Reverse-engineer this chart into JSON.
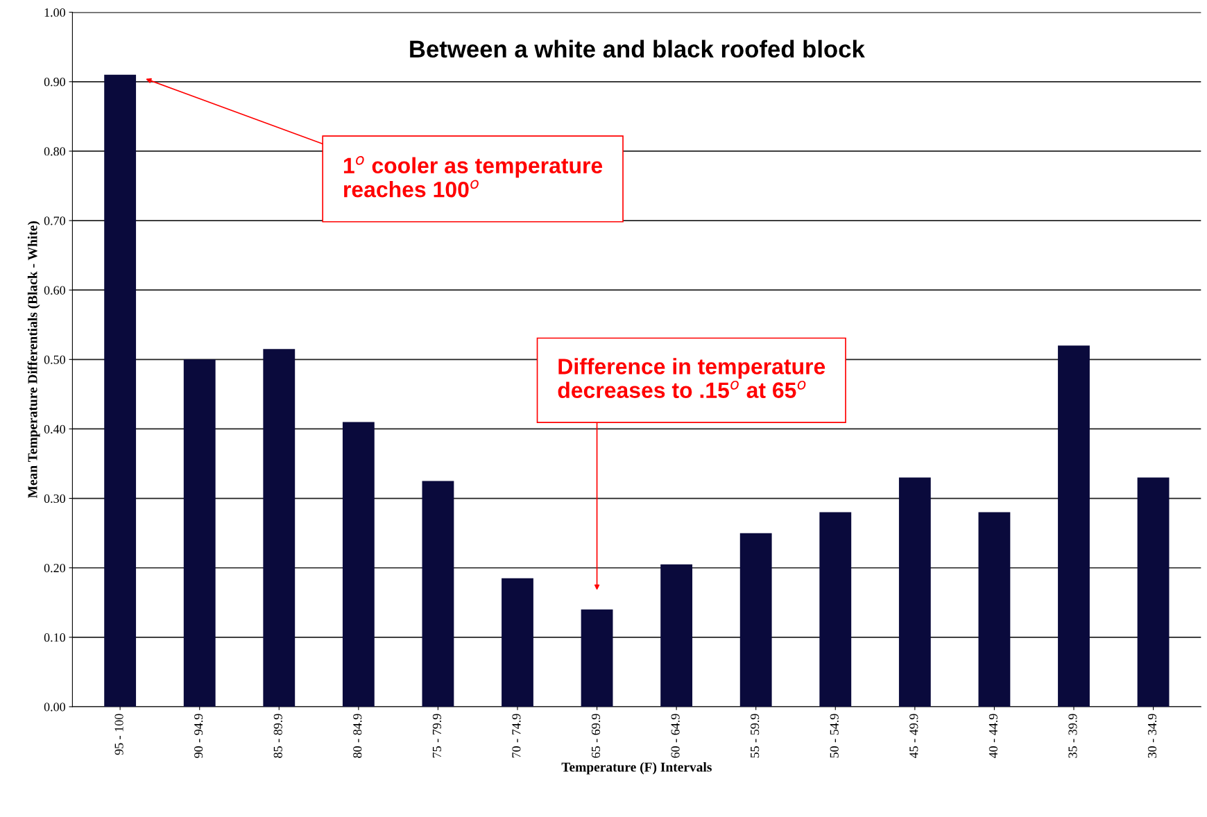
{
  "chart_data": {
    "type": "bar",
    "title": "Between a white and black roofed block",
    "xlabel": "Temperature (F) Intervals",
    "ylabel": "Mean Temperature Differentials (Black - White)",
    "categories": [
      "95 - 100",
      "90 - 94.9",
      "85 - 89.9",
      "80 - 84.9",
      "75 - 79.9",
      "70 - 74.9",
      "65 - 69.9",
      "60 - 64.9",
      "55 - 59.9",
      "50 - 54.9",
      "45 - 49.9",
      "40 - 44.9",
      "35 - 39.9",
      "30 - 34.9"
    ],
    "values": [
      0.91,
      0.5,
      0.515,
      0.41,
      0.325,
      0.185,
      0.14,
      0.205,
      0.25,
      0.28,
      0.33,
      0.28,
      0.52,
      0.33
    ],
    "color": "#0a0a3c",
    "ylim": [
      0,
      1
    ],
    "yticks": [
      {
        "value": 0,
        "label": "0.00"
      },
      {
        "value": 0.1,
        "label": "0.10"
      },
      {
        "value": 0.2,
        "label": "0.20"
      },
      {
        "value": 0.3,
        "label": "0.30"
      },
      {
        "value": 0.4,
        "label": "0.40"
      },
      {
        "value": 0.5,
        "label": "0.50"
      },
      {
        "value": 0.6,
        "label": "0.60"
      },
      {
        "value": 0.7,
        "label": "0.70"
      },
      {
        "value": 0.8,
        "label": "0.80"
      },
      {
        "value": 0.9,
        "label": "0.90"
      },
      {
        "value": 1,
        "label": "1.00"
      }
    ],
    "grid": "y",
    "annotations": [
      "1$^{o}$ cooler as temperature\nreaches 100$^{o}$",
      "Difference in temperature\ndecreases to .15$^{o}$ at 65$^{o}$"
    ]
  }
}
